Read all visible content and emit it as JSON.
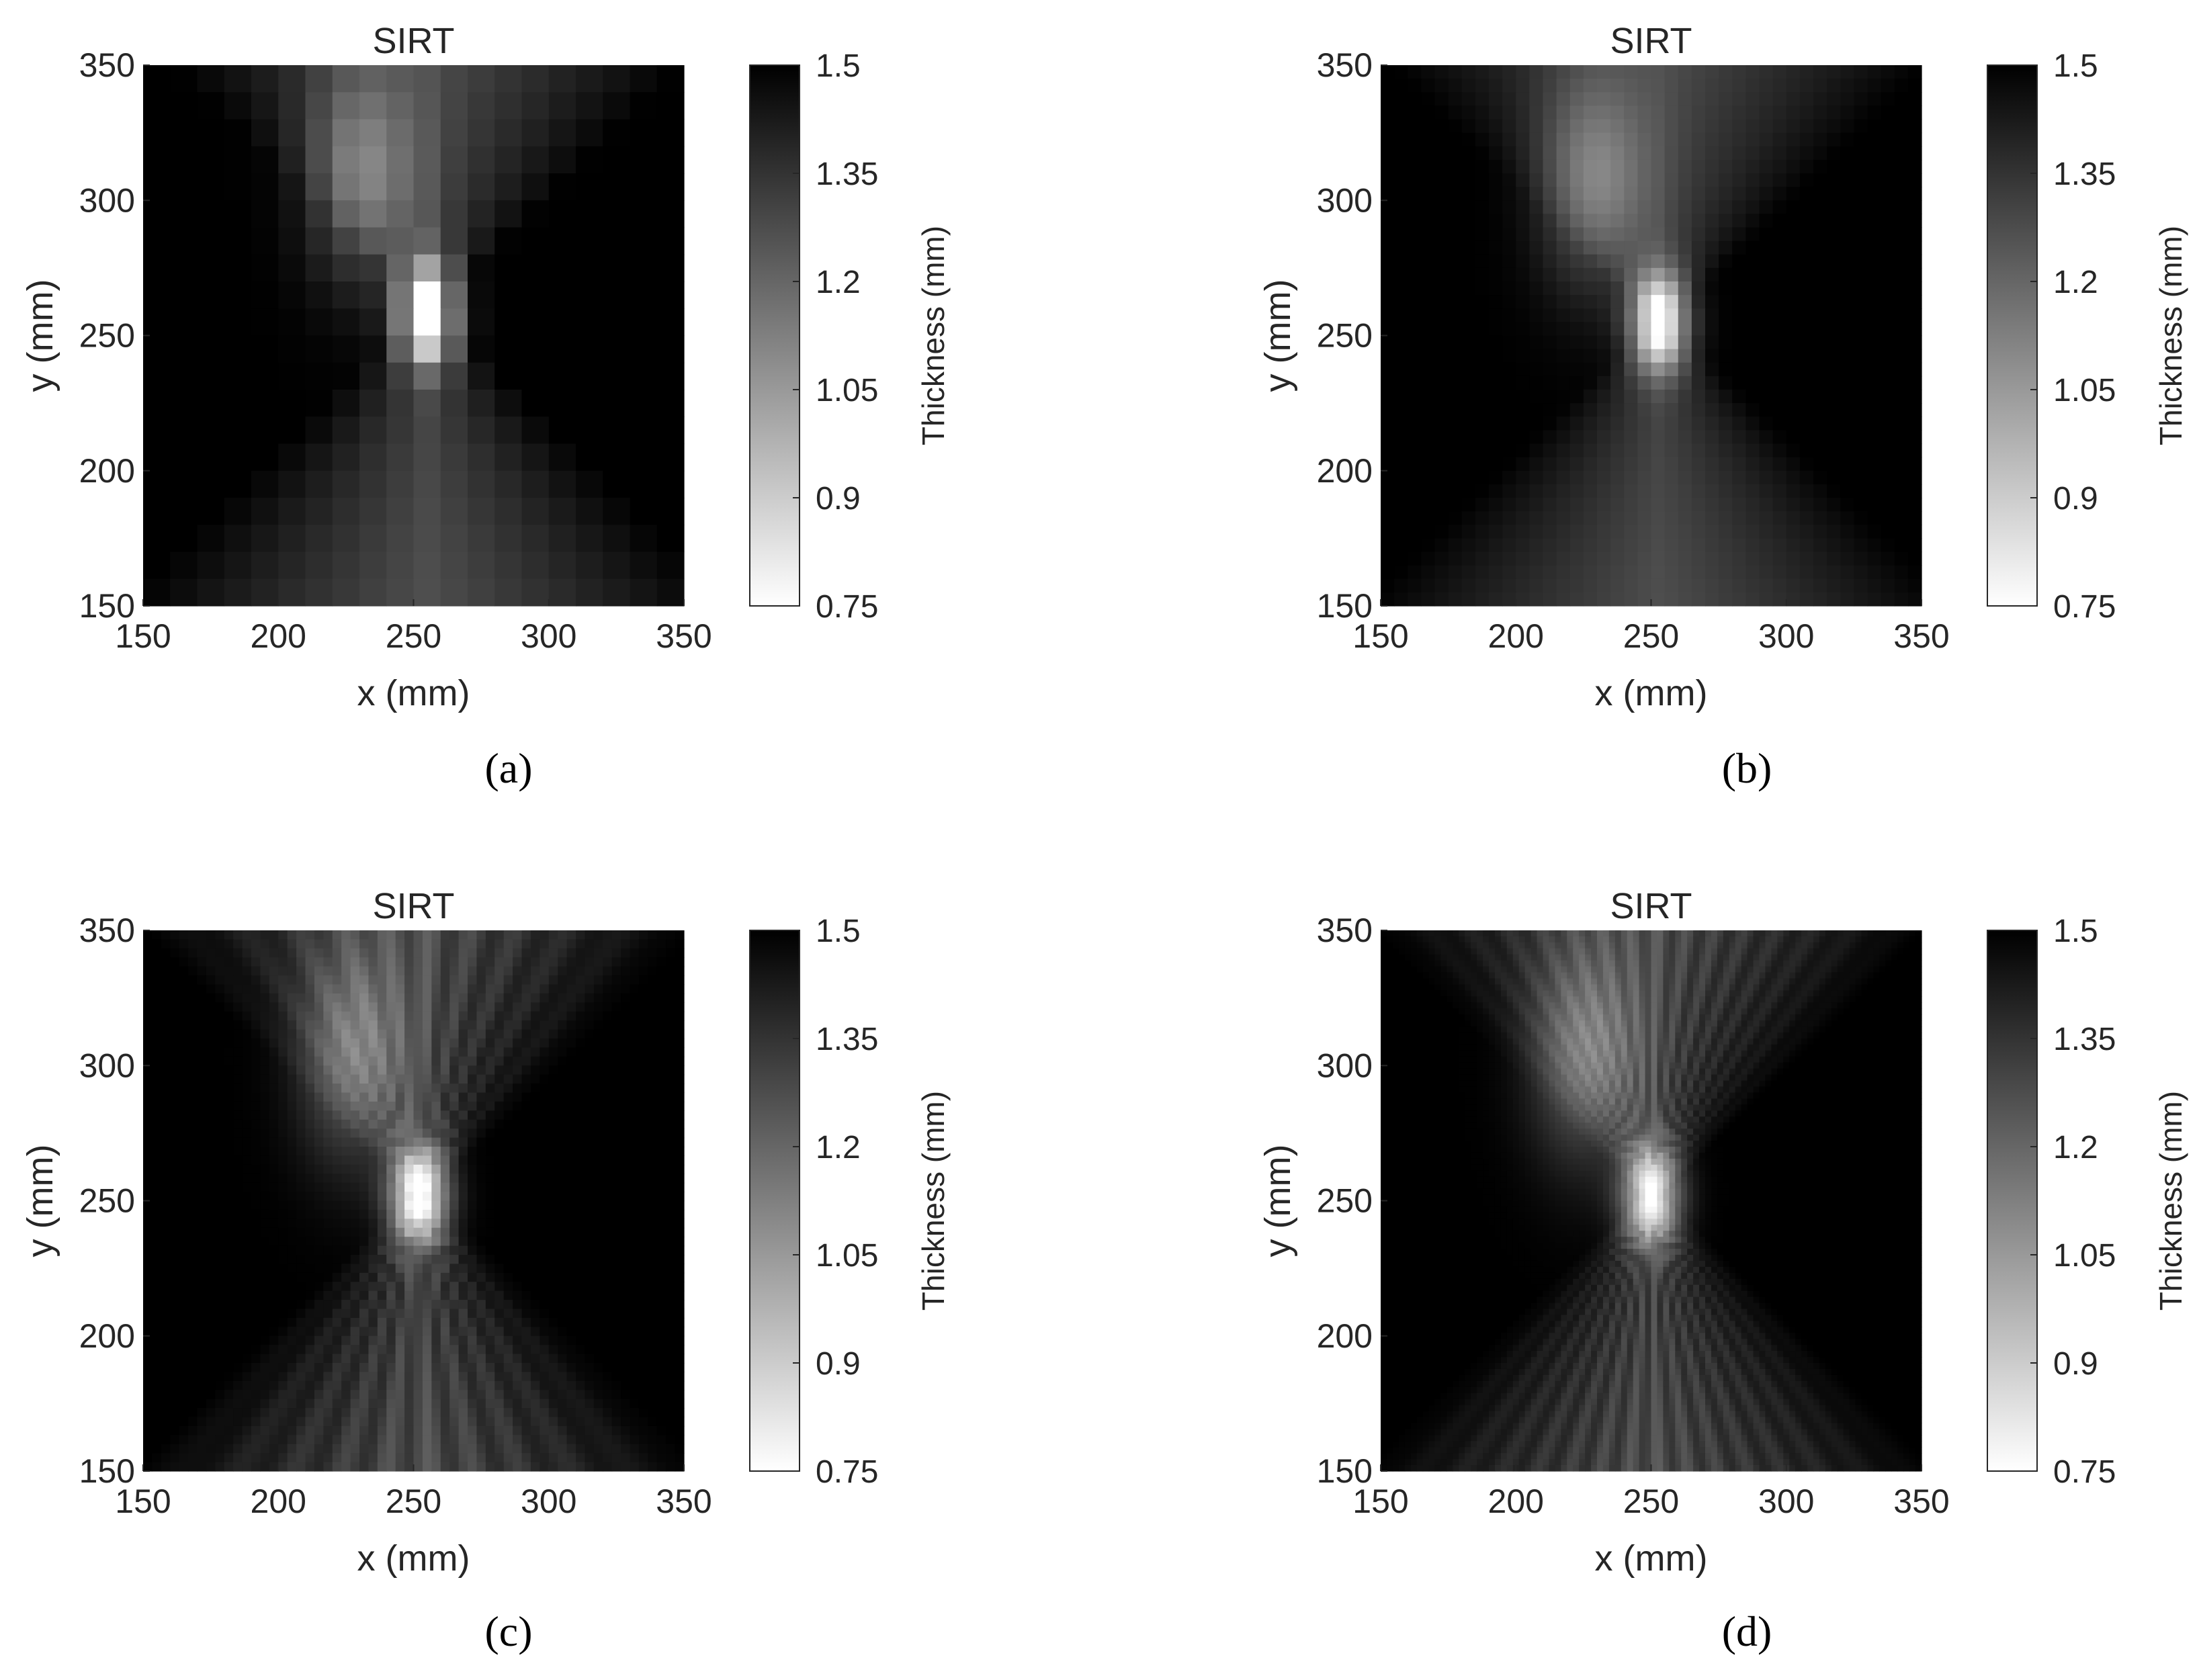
{
  "figure": {
    "captions": [
      "(a)",
      "(b)",
      "(c)",
      "(d)"
    ]
  },
  "chart_data": [
    {
      "panel": "a",
      "type": "heatmap",
      "title": "SIRT",
      "xlabel": "x (mm)",
      "ylabel": "y (mm)",
      "xlim": [
        150,
        350
      ],
      "ylim": [
        150,
        350
      ],
      "xticks": [
        150,
        200,
        250,
        300,
        350
      ],
      "yticks": [
        150,
        200,
        250,
        300,
        350
      ],
      "grid_cells": 20,
      "colorbar": {
        "label": "Thickness (mm)",
        "range": [
          0.75,
          1.5
        ],
        "ticks": [
          0.75,
          0.9,
          1.05,
          1.2,
          1.35,
          1.5
        ],
        "colormap": "gray (0.75 white → 1.5 black)"
      },
      "features": {
        "defect_center": [
          255,
          258
        ],
        "defect_min_thickness": 0.78,
        "background_thickness": 1.5,
        "pattern": "hourglass ray-coverage artifact"
      }
    },
    {
      "panel": "b",
      "type": "heatmap",
      "title": "SIRT",
      "xlabel": "x (mm)",
      "ylabel": "y (mm)",
      "xlim": [
        150,
        350
      ],
      "ylim": [
        150,
        350
      ],
      "xticks": [
        150,
        200,
        250,
        300,
        350
      ],
      "yticks": [
        150,
        200,
        250,
        300,
        350
      ],
      "grid_cells": 40,
      "colorbar": {
        "label": "Thickness (mm)",
        "range": [
          0.75,
          1.5
        ],
        "ticks": [
          0.75,
          0.9,
          1.05,
          1.2,
          1.35,
          1.5
        ],
        "colormap": "gray (0.75 white → 1.5 black)"
      },
      "features": {
        "defect_center": [
          253,
          255
        ],
        "defect_min_thickness": 0.82,
        "background_thickness": 1.5,
        "pattern": "hourglass ray-coverage artifact"
      }
    },
    {
      "panel": "c",
      "type": "heatmap",
      "title": "SIRT",
      "xlabel": "x (mm)",
      "ylabel": "y (mm)",
      "xlim": [
        150,
        350
      ],
      "ylim": [
        150,
        350
      ],
      "xticks": [
        150,
        200,
        250,
        300,
        350
      ],
      "yticks": [
        150,
        200,
        250,
        300,
        350
      ],
      "grid_cells": 60,
      "colorbar": {
        "label": "Thickness (mm)",
        "range": [
          0.75,
          1.5
        ],
        "ticks": [
          0.75,
          0.9,
          1.05,
          1.2,
          1.35,
          1.5
        ],
        "colormap": "gray (0.75 white → 1.5 black)"
      },
      "features": {
        "defect_center": [
          252,
          252
        ],
        "defect_min_thickness": 0.8,
        "background_thickness": 1.5,
        "pattern": "hourglass ray-coverage artifact"
      }
    },
    {
      "panel": "d",
      "type": "heatmap",
      "title": "SIRT",
      "xlabel": "x (mm)",
      "ylabel": "y (mm)",
      "xlim": [
        150,
        350
      ],
      "ylim": [
        150,
        350
      ],
      "xticks": [
        150,
        200,
        250,
        300,
        350
      ],
      "yticks": [
        150,
        200,
        250,
        300,
        350
      ],
      "grid_cells": 90,
      "colorbar": {
        "label": "Thickness (mm)",
        "range": [
          0.75,
          1.5
        ],
        "ticks": [
          0.75,
          0.9,
          1.05,
          1.2,
          1.35,
          1.5
        ],
        "colormap": "gray (0.75 white → 1.5 black)"
      },
      "features": {
        "defect_center": [
          250,
          252
        ],
        "defect_min_thickness": 0.88,
        "background_thickness": 1.5,
        "pattern": "hourglass ray-coverage artifact"
      }
    }
  ]
}
